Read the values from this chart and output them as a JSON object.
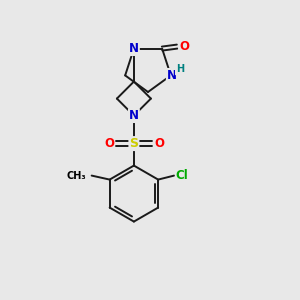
{
  "bg_color": "#e8e8e8",
  "atom_colors": {
    "C": "#000000",
    "N": "#0000cc",
    "NH": "#008080",
    "O": "#ff0000",
    "S": "#cccc00",
    "Cl": "#00aa00",
    "H": "#008080"
  },
  "bond_color": "#1a1a1a",
  "bond_lw": 1.4,
  "fontsize": 8.5,
  "figsize": [
    3.0,
    3.0
  ],
  "dpi": 100
}
